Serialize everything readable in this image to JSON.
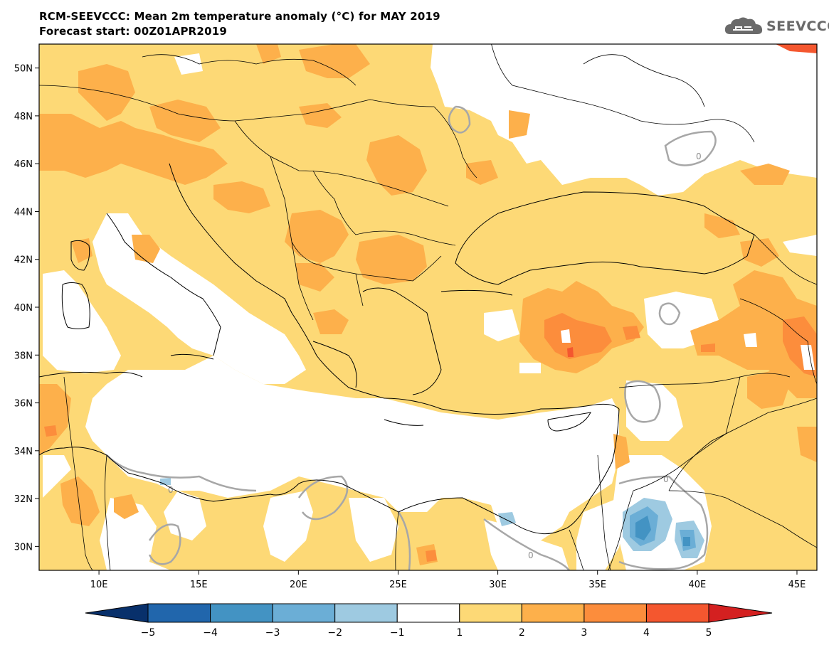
{
  "header": {
    "title": "RCM-SEEVCCC: Mean 2m temperature anomaly (°C) for MAY 2019",
    "subtitle": "Forecast start: 00Z01APR2019"
  },
  "logo": {
    "text": "SEEVCCC",
    "icon": "cloud-icon"
  },
  "map": {
    "lon_range": [
      7,
      46
    ],
    "lat_range": [
      29,
      51
    ],
    "lon_ticks": [
      {
        "v": 10,
        "l": "10E"
      },
      {
        "v": 15,
        "l": "15E"
      },
      {
        "v": 20,
        "l": "20E"
      },
      {
        "v": 25,
        "l": "25E"
      },
      {
        "v": 30,
        "l": "30E"
      },
      {
        "v": 35,
        "l": "35E"
      },
      {
        "v": 40,
        "l": "40E"
      },
      {
        "v": 45,
        "l": "45E"
      }
    ],
    "lat_ticks": [
      {
        "v": 30,
        "l": "30N"
      },
      {
        "v": 32,
        "l": "32N"
      },
      {
        "v": 34,
        "l": "34N"
      },
      {
        "v": 36,
        "l": "36N"
      },
      {
        "v": 38,
        "l": "38N"
      },
      {
        "v": 40,
        "l": "40N"
      },
      {
        "v": 42,
        "l": "42N"
      },
      {
        "v": 44,
        "l": "44N"
      },
      {
        "v": 46,
        "l": "46N"
      },
      {
        "v": 48,
        "l": "48N"
      },
      {
        "v": 50,
        "l": "50N"
      }
    ],
    "contour_labels": [
      "0",
      "0",
      "0",
      "0"
    ]
  },
  "colorbar": {
    "levels": [
      "−5",
      "−4",
      "−3",
      "−2",
      "−1",
      "1",
      "2",
      "3",
      "4",
      "5"
    ],
    "colors": [
      "#08306b",
      "#2166ac",
      "#4393c3",
      "#6baed6",
      "#9ecae1",
      "#ffffff",
      "#fdd976",
      "#fdb04b",
      "#fc8d3c",
      "#f4572f",
      "#d42020"
    ]
  }
}
